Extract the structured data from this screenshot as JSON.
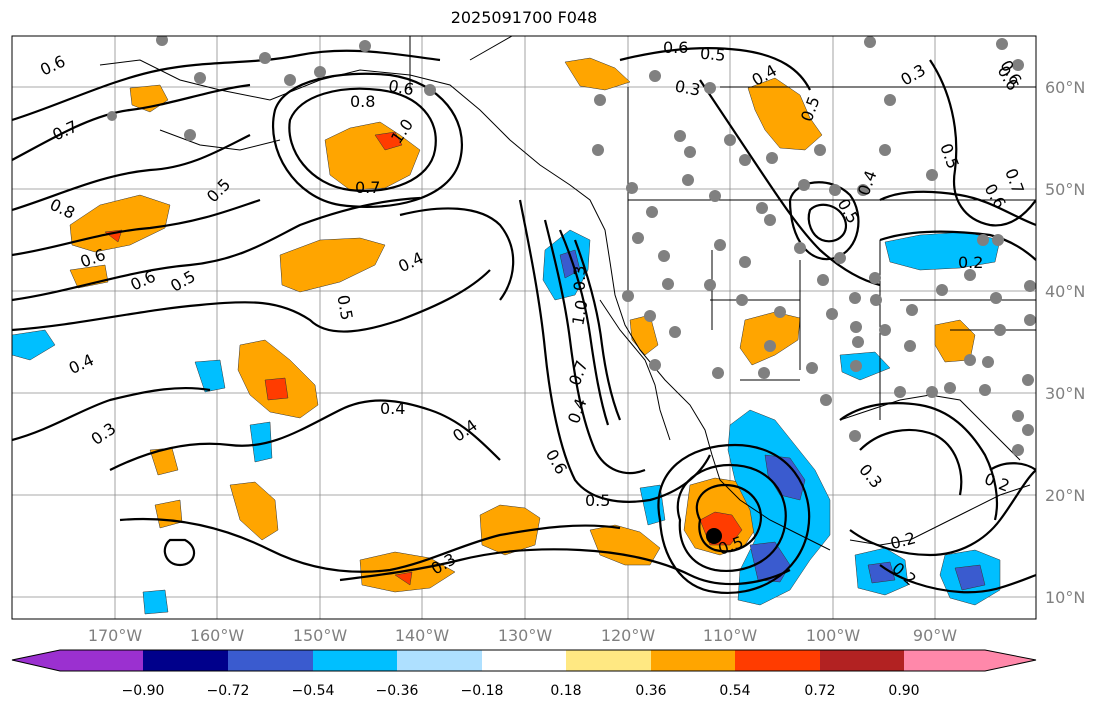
{
  "title": "2025091700 F048",
  "lat_labels": [
    "60°N",
    "50°N",
    "40°N",
    "30°N",
    "20°N",
    "10°N"
  ],
  "lon_labels": [
    "170°W",
    "160°W",
    "150°W",
    "140°W",
    "130°W",
    "120°W",
    "110°W",
    "100°W",
    "90°W"
  ],
  "colorbar": {
    "ticks": [
      "−0.90",
      "−0.72",
      "−0.54",
      "−0.36",
      "−0.18",
      "0.18",
      "0.36",
      "0.54",
      "0.72",
      "0.90"
    ],
    "colors": [
      "#9b30d0",
      "#00008b",
      "#3a5bcf",
      "#00bfff",
      "#aee0ff",
      "#ffffff",
      "#ffe882",
      "#ffa500",
      "#ff3c00",
      "#b22222",
      "#ff88aa"
    ]
  },
  "contour_labels": [
    "0.6",
    "0.5",
    "0.6",
    "0.3",
    "0.4",
    "0.3",
    "0.6",
    "0.7",
    "0.8",
    "0.6",
    "1.0",
    "0.7",
    "0.5",
    "0.8",
    "0.6",
    "0.6",
    "0.5",
    "0.4",
    "0.5",
    "0.4",
    "0.4",
    "0.4",
    "0.3",
    "0.4",
    "1.0",
    "0.7",
    "0.6",
    "0.3",
    "0.5",
    "0.3",
    "0.5",
    "0.5",
    "0.5",
    "0.6",
    "0.4",
    "0.5",
    "0.2",
    "0.3",
    "0.2",
    "0.2",
    "0.2",
    "0.6",
    "0.7"
  ],
  "colors": {
    "positive_mid": "#ffa500",
    "positive_high": "#ff3c00",
    "negative_mid": "#00bfff",
    "negative_high": "#3a5bcf",
    "station_dot": "#808080"
  }
}
